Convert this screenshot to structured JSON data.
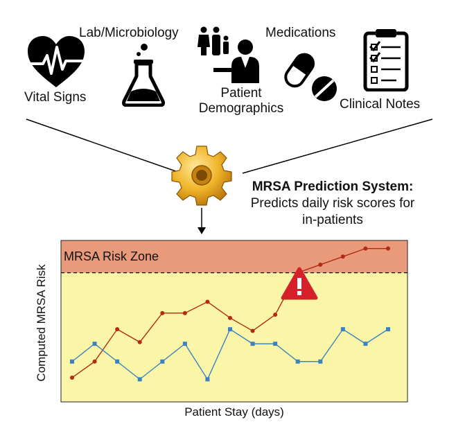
{
  "sources": {
    "vital_signs": "Vital Signs",
    "lab": "Lab/Microbiology",
    "patient_line1": "Patient",
    "patient_line2": "Demographics",
    "medications": "Medications",
    "clinical_notes": "Clinical Notes"
  },
  "system": {
    "title": "MRSA Prediction System:",
    "desc_line1": "Predicts daily risk scores for",
    "desc_line2": "in-patients"
  },
  "chart_data": {
    "type": "line",
    "xlabel": "Patient Stay (days)",
    "ylabel": "Computed MRSA Risk",
    "zone_label": "MRSA Risk Zone",
    "x": [
      1,
      2,
      3,
      4,
      5,
      6,
      7,
      8,
      9,
      10,
      11,
      12,
      13,
      14,
      15
    ],
    "ylim": [
      0,
      1
    ],
    "threshold": 0.8,
    "grid": false,
    "series": [
      {
        "color": "#b22a12",
        "marker": "circle",
        "values": [
          0.15,
          0.25,
          0.45,
          0.37,
          0.55,
          0.55,
          0.62,
          0.52,
          0.44,
          0.54,
          0.8,
          0.85,
          0.9,
          0.95,
          0.95
        ]
      },
      {
        "color": "#3b82c4",
        "marker": "square",
        "values": [
          0.25,
          0.36,
          0.25,
          0.14,
          0.25,
          0.36,
          0.14,
          0.45,
          0.36,
          0.36,
          0.25,
          0.25,
          0.45,
          0.36,
          0.45
        ]
      }
    ]
  }
}
